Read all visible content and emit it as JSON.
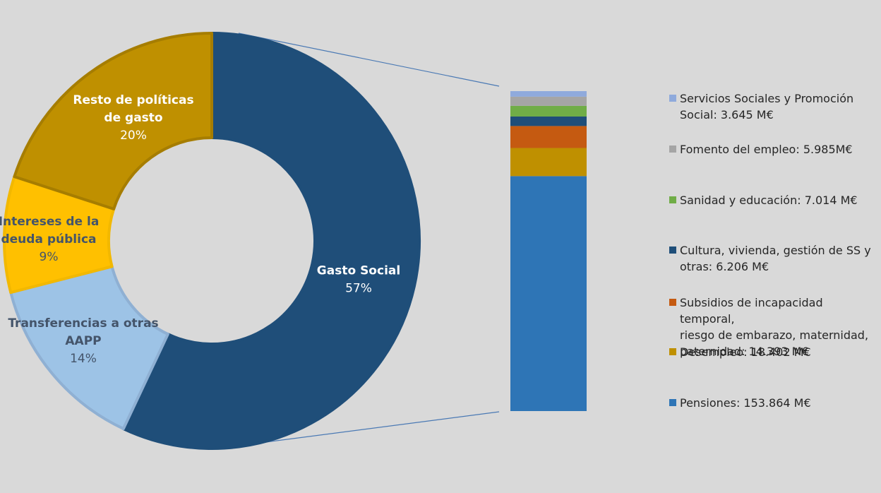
{
  "chart_data": [
    {
      "type": "pie",
      "donut": true,
      "slices": [
        {
          "label_lines": [
            "Gasto Social"
          ],
          "pct_label": "57%",
          "value": 57,
          "color": "#1f4e79",
          "border": "#1f4e79",
          "text_color": "#ffffff"
        },
        {
          "label_lines": [
            "Transferencias a otras",
            "AAPP"
          ],
          "pct_label": "14%",
          "value": 14,
          "color": "#9dc3e6",
          "border": "#8fb0d3",
          "text_color": "#44546a"
        },
        {
          "label_lines": [
            "Intereses de la",
            "deuda pública"
          ],
          "pct_label": "9%",
          "value": 9,
          "color": "#ffc000",
          "border": "#f2b800",
          "text_color": "#44546a"
        },
        {
          "label_lines": [
            "Resto de políticas",
            "de gasto"
          ],
          "pct_label": "20%",
          "value": 20,
          "color": "#bf9000",
          "border": "#a67d00",
          "text_color": "#ffffff"
        }
      ]
    },
    {
      "type": "bar",
      "stacked": true,
      "series": [
        {
          "name_lines": [
            "Pensiones: 153.864 M€"
          ],
          "value": 153864,
          "color": "#2e75b6"
        },
        {
          "name_lines": [
            "Desempleo: 18.402 M€"
          ],
          "value": 18402,
          "color": "#bf9000"
        },
        {
          "name_lines": [
            "Subsidios de incapacidad temporal,",
            "riesgo de embarazo, maternidad,",
            "paternidad: 14.393 M€"
          ],
          "value": 14393,
          "color": "#c55a11"
        },
        {
          "name_lines": [
            "Cultura, vivienda, gestión de SS y",
            "otras:  6.206 M€"
          ],
          "value": 6206,
          "color": "#1f4e79"
        },
        {
          "name_lines": [
            "Sanidad y educación: 7.014 M€"
          ],
          "value": 7014,
          "color": "#70ad47"
        },
        {
          "name_lines": [
            "Fomento del empleo: 5.985M€"
          ],
          "value": 5985,
          "color": "#a5a5a5"
        },
        {
          "name_lines": [
            "Servicios Sociales y Promoción",
            "Social: 3.645 M€"
          ],
          "value": 3645,
          "color": "#8faadc"
        }
      ]
    }
  ]
}
